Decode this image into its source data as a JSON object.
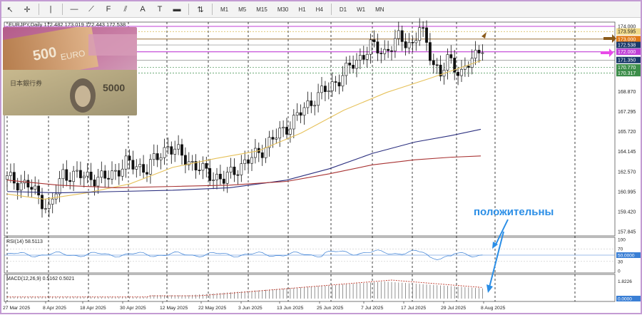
{
  "toolbar": {
    "tools": [
      {
        "icon": "cursor-icon",
        "glyph": "↖"
      },
      {
        "icon": "crosshair-icon",
        "glyph": "✛"
      },
      {
        "icon": "vertical-line-icon",
        "glyph": "|"
      },
      {
        "icon": "horizontal-line-icon",
        "glyph": "—"
      },
      {
        "icon": "trendline-icon",
        "glyph": "⟋"
      },
      {
        "icon": "fibonacci-icon",
        "glyph": "F"
      },
      {
        "icon": "channel-icon",
        "glyph": "⫽"
      },
      {
        "icon": "text-icon",
        "glyph": "A"
      },
      {
        "icon": "label-icon",
        "glyph": "T"
      },
      {
        "icon": "rectangle-icon",
        "glyph": "▬"
      },
      {
        "icon": "arrows-icon",
        "glyph": "⇅"
      }
    ],
    "timeframes": [
      "M1",
      "M5",
      "M15",
      "M30",
      "H1",
      "H4",
      "D1",
      "W1",
      "MN"
    ]
  },
  "chart_header": "EURJPY,Daily  172.482 173.019 172.443 172.538",
  "price_axis": [
    "174.000",
    "173.595",
    "173.000",
    "172.538",
    "172.000",
    "171.350",
    "170.770",
    "170.317",
    "168.870",
    "167.295",
    "165.720",
    "164.145",
    "162.570",
    "160.995",
    "159.420",
    "157.845"
  ],
  "rsi_label": "RSI(14) 58.5113",
  "rsi_axis": [
    "100",
    "70",
    "50.0000",
    "30",
    "0"
  ],
  "macd_label": "MACD(12,26,9) 0.5162 0.5021",
  "macd_axis": [
    "1.8226",
    "0.0000"
  ],
  "date_axis": [
    "27 Mar 2025",
    "8 Apr 2025",
    "18 Apr 2025",
    "30 Apr 2025",
    "12 May 2025",
    "22 May 2025",
    "3 Jun 2025",
    "13 Jun 2025",
    "25 Jun 2025",
    "7 Jul 2025",
    "17 Jul 2025",
    "29 Jul 2025",
    "8 Aug 2025"
  ],
  "annotation": "положительны",
  "colors": {
    "ma_short": "#e6c15a",
    "ma_mid": "#2b2f7f",
    "ma_long": "#a83232",
    "bid_line": "#c03fd6",
    "rsi": "#3a7fd5",
    "annotation": "#2b8ee6",
    "arrow_brown": "#8b5a1a",
    "arrow_pink": "#e84be8",
    "price_label_bg": "#1a3a6a",
    "resistance_label_bg": "#e07a1a"
  }
}
